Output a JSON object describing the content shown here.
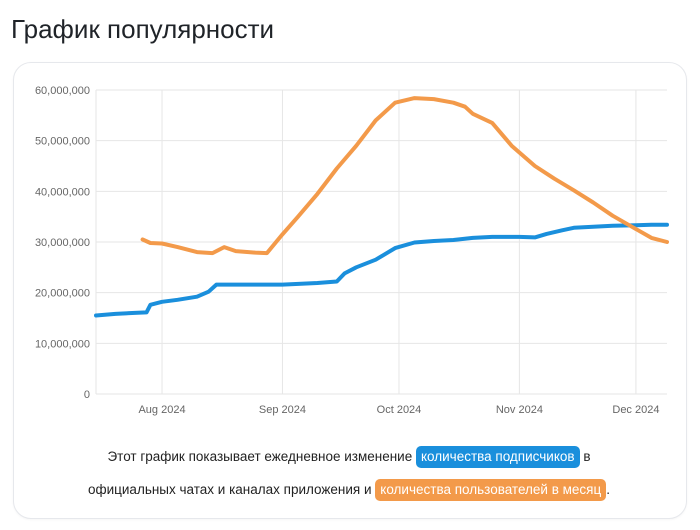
{
  "page": {
    "title": "График популярности"
  },
  "caption": {
    "part1": "Этот график показывает ежедневное изменение ",
    "highlight1": "количества подписчиков",
    "part2": " в",
    "part3": "официальных чатах и каналах приложения и ",
    "highlight2": "количества пользователей в месяц",
    "part4": "."
  },
  "colors": {
    "subscribers": "#1a8fdc",
    "monthly_users": "#f39a4a",
    "grid": "#e6e6e6"
  },
  "chart_data": {
    "type": "line",
    "title": "",
    "xlabel": "",
    "ylabel": "",
    "x_tick_labels": [
      "Aug 2024",
      "Sep 2024",
      "Oct 2024",
      "Nov 2024",
      "Dec 2024"
    ],
    "y_tick_labels": [
      "0",
      "10,000,000",
      "20,000,000",
      "30,000,000",
      "40,000,000",
      "50,000,000",
      "60,000,000"
    ],
    "ylim": [
      0,
      60000000
    ],
    "xlim": [
      "2024-07-15",
      "2024-12-09"
    ],
    "grid": true,
    "legend": "none",
    "series": [
      {
        "key": "subscribers",
        "color": "#1a8fdc",
        "points": [
          [
            "2024-07-15",
            15500000
          ],
          [
            "2024-07-20",
            15800000
          ],
          [
            "2024-07-25",
            16000000
          ],
          [
            "2024-07-28",
            16100000
          ],
          [
            "2024-07-29",
            17600000
          ],
          [
            "2024-08-01",
            18200000
          ],
          [
            "2024-08-05",
            18600000
          ],
          [
            "2024-08-10",
            19200000
          ],
          [
            "2024-08-13",
            20200000
          ],
          [
            "2024-08-15",
            21600000
          ],
          [
            "2024-08-20",
            21600000
          ],
          [
            "2024-08-25",
            21600000
          ],
          [
            "2024-09-01",
            21600000
          ],
          [
            "2024-09-10",
            21900000
          ],
          [
            "2024-09-15",
            22200000
          ],
          [
            "2024-09-17",
            23800000
          ],
          [
            "2024-09-20",
            25000000
          ],
          [
            "2024-09-25",
            26500000
          ],
          [
            "2024-09-30",
            28800000
          ],
          [
            "2024-10-05",
            29900000
          ],
          [
            "2024-10-10",
            30200000
          ],
          [
            "2024-10-15",
            30400000
          ],
          [
            "2024-10-20",
            30800000
          ],
          [
            "2024-10-25",
            31000000
          ],
          [
            "2024-11-01",
            31000000
          ],
          [
            "2024-11-05",
            30900000
          ],
          [
            "2024-11-08",
            31600000
          ],
          [
            "2024-11-12",
            32300000
          ],
          [
            "2024-11-15",
            32800000
          ],
          [
            "2024-11-20",
            33000000
          ],
          [
            "2024-11-25",
            33200000
          ],
          [
            "2024-12-01",
            33300000
          ],
          [
            "2024-12-05",
            33400000
          ],
          [
            "2024-12-09",
            33400000
          ]
        ]
      },
      {
        "key": "monthly_users",
        "color": "#f39a4a",
        "points": [
          [
            "2024-07-27",
            30500000
          ],
          [
            "2024-07-29",
            29800000
          ],
          [
            "2024-08-01",
            29700000
          ],
          [
            "2024-08-05",
            29000000
          ],
          [
            "2024-08-10",
            28000000
          ],
          [
            "2024-08-14",
            27800000
          ],
          [
            "2024-08-17",
            29000000
          ],
          [
            "2024-08-20",
            28200000
          ],
          [
            "2024-08-25",
            27900000
          ],
          [
            "2024-08-28",
            27800000
          ],
          [
            "2024-09-01",
            31500000
          ],
          [
            "2024-09-05",
            35000000
          ],
          [
            "2024-09-10",
            39500000
          ],
          [
            "2024-09-15",
            44500000
          ],
          [
            "2024-09-20",
            49000000
          ],
          [
            "2024-09-25",
            54000000
          ],
          [
            "2024-09-30",
            57500000
          ],
          [
            "2024-10-05",
            58400000
          ],
          [
            "2024-10-10",
            58200000
          ],
          [
            "2024-10-15",
            57500000
          ],
          [
            "2024-10-18",
            56700000
          ],
          [
            "2024-10-20",
            55300000
          ],
          [
            "2024-10-25",
            53500000
          ],
          [
            "2024-10-30",
            49000000
          ],
          [
            "2024-11-05",
            45000000
          ],
          [
            "2024-11-10",
            42500000
          ],
          [
            "2024-11-15",
            40200000
          ],
          [
            "2024-11-20",
            37800000
          ],
          [
            "2024-11-25",
            35200000
          ],
          [
            "2024-11-30",
            33000000
          ],
          [
            "2024-12-05",
            30800000
          ],
          [
            "2024-12-09",
            30000000
          ]
        ]
      }
    ]
  }
}
